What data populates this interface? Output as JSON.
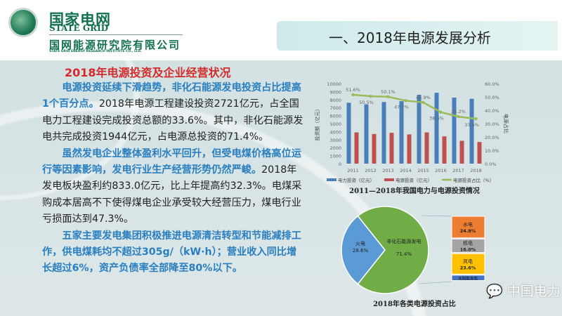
{
  "header": {
    "org_cn": "国家电网",
    "org_en": "STATE GRID",
    "inst_cn": "国网能源研究院有限公司",
    "inst_en": "STATE GRID ENERGY RESEARCH INSTITUTE CO., LTD.",
    "slide_title": "一、2018年电源发展分析"
  },
  "section_title": "2018年电源投资及企业经营状况",
  "paragraphs": [
    {
      "bold": "电源投资延续下滑趋势，非化石能源发电投资占比提高1个百分点。",
      "normal": "2018年电源工程建设投资2721亿元，占全国电力工程建设完成投资总额的33.6%。其中，非化石能源发电共完成投资1944亿元，占电源总投资的71.4%。"
    },
    {
      "bold": "虽然发电企业整体盈利水平回升，但受电煤价格高位运行等因素影响，发电行业生产经营形势仍然严峻。",
      "normal": "2018年发电板块盈利约833.0亿元，比上年提高约32.3%。电煤采购成本居高不下使得煤电企业承受较大经营压力，煤电行业亏损面达到47.3%。"
    },
    {
      "bold": "五家主要发电集团积极推进电源清洁转型和节能减排工作，供电煤耗均不超过305g/（kW·h）；营业收入同比增长超过6%，资产负债率全部降至80%以下。",
      "normal": ""
    }
  ],
  "watermark": "中国电力",
  "chart_data": [
    {
      "type": "bar",
      "title": "2011—2018年我国电力与电源投资情况",
      "ylabel": "投资额（亿元）",
      "y2label": "电源占比",
      "ylim": [
        0,
        10000
      ],
      "y2lim": [
        0,
        60
      ],
      "yticks": [
        "0",
        "1000",
        "2000",
        "3000",
        "4000",
        "5000",
        "6000",
        "7000",
        "8000",
        "9000",
        "10000"
      ],
      "y2ticks": [
        "0.0%",
        "10.0%",
        "20.0%",
        "30.0%",
        "40.0%",
        "50.0%",
        "60.0%"
      ],
      "categories": [
        "2011",
        "2012",
        "2013",
        "2014",
        "2015",
        "2016",
        "2017",
        "2018"
      ],
      "series": [
        {
          "name": "电力投资（亿元）",
          "type": "bar",
          "color": "#4a7ebb",
          "values": [
            7600,
            7400,
            7700,
            7800,
            8600,
            8850,
            8250,
            8100
          ]
        },
        {
          "name": "电源投资（亿元）",
          "type": "bar",
          "color": "#c0504d",
          "values": [
            3900,
            3700,
            3850,
            3650,
            3900,
            3400,
            2850,
            2700
          ]
        },
        {
          "name": "电源投资占比（%）",
          "type": "line",
          "color": "#9bbb59",
          "values": [
            51.6,
            50.5,
            50.1,
            47.2,
            45.9,
            38.6,
            35.2,
            33.6
          ],
          "labels": [
            "51.6%",
            "50.5%",
            "50.1%",
            "47.2%",
            "45.9%",
            "38.6%",
            "35.2%",
            "33.6%"
          ]
        }
      ],
      "legend": "bottom"
    },
    {
      "type": "pie",
      "title": "2018年各类电源投资占比",
      "slices": [
        {
          "label": "火电",
          "value": 28.6,
          "text": "28.6%",
          "color": "#5b9bd5"
        },
        {
          "label": "非化石能源发电",
          "value": 71.4,
          "text": "71.4%",
          "color": "#70ad47"
        }
      ],
      "breakdown": [
        {
          "label": "水电",
          "value": 24.8,
          "text": "24.8%",
          "color": "#ed7d31"
        },
        {
          "label": "核电",
          "value": 16.0,
          "text": "16.0%",
          "color": "#a5a5a5"
        },
        {
          "label": "风电",
          "value": 23.6,
          "text": "23.6%",
          "color": "#ffc000"
        },
        {
          "label": "太阳能发电",
          "value": 7.0,
          "text": "",
          "color": "#4472c4"
        }
      ]
    }
  ]
}
